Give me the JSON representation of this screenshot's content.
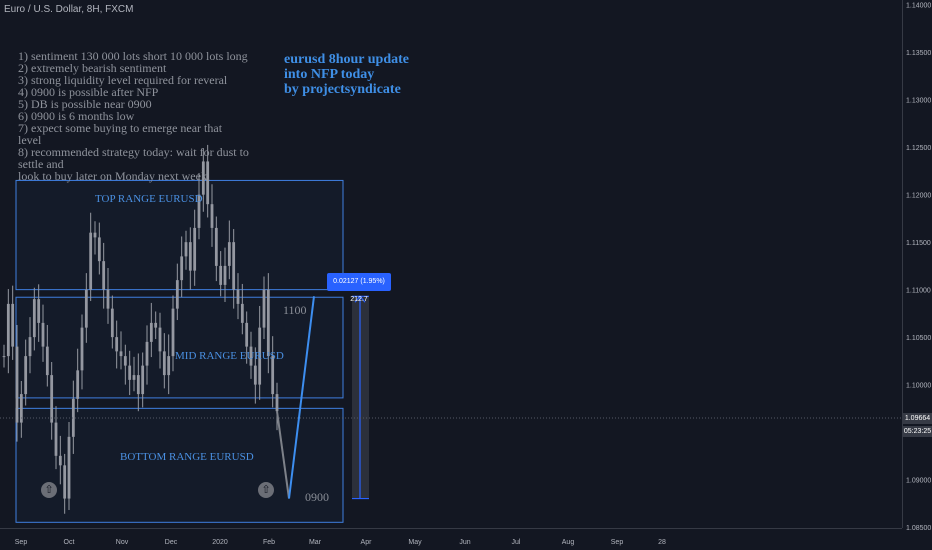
{
  "header": {
    "symbol": "Euro / U.S. Dollar, 8H, FXCM"
  },
  "notes": [
    "1) sentiment 130 000 lots short 10 000 lots long",
    "2) extremely bearish sentiment",
    "3) strong liquidity level required for reveral",
    "4) 0900 is possible after NFP",
    "5) DB is possible near 0900",
    "6) 0900 is 6 months low",
    "7) expect some buying to emerge near that\nlevel",
    "8) recommended strategy today: wait for dust to settle and\nlook to buy later on Monday next week."
  ],
  "headline": [
    "eurusd 8hour update",
    "into NFP today",
    "by projectsyndicate"
  ],
  "ranges": {
    "top": "TOP RANGE EURUSD",
    "mid": "MID RANGE EURUSD",
    "bottom": "BOTTOM RANGE EURUSD"
  },
  "levels": {
    "upper": "1100",
    "lower": "0900"
  },
  "measure": {
    "label": "0.02127 (1.95%) 212.7"
  },
  "price_scale": {
    "current_price": "1.09664",
    "countdown": "05:23:25"
  },
  "chart_data": {
    "type": "candlestick",
    "title": "Euro / U.S. Dollar, 8H, FXCM",
    "x_ticks": [
      "Sep",
      "Oct",
      "Nov",
      "Dec",
      "2020",
      "Feb",
      "Mar",
      "Apr",
      "May",
      "Jun",
      "Jul",
      "Aug",
      "Sep",
      "28"
    ],
    "y_ticks": [
      "1.14000",
      "1.13500",
      "1.13000",
      "1.12500",
      "1.12000",
      "1.11500",
      "1.11000",
      "1.10500",
      "1.10000",
      "1.09500",
      "1.09000",
      "1.08500"
    ],
    "ylim": [
      1.0849,
      1.1405
    ],
    "grid": false,
    "series": [
      {
        "values": [
          1.103,
          1.1085,
          1.104,
          1.096,
          1.099,
          1.103,
          1.105,
          1.109,
          1.1065,
          1.104,
          1.101,
          1.096,
          1.0925,
          1.0915,
          1.088,
          1.0945,
          1.0985,
          1.1015,
          1.106,
          1.11,
          1.116,
          1.1155,
          1.113,
          1.11,
          1.108,
          1.105,
          1.1035,
          1.103,
          1.102,
          1.1005,
          1.101,
          1.099,
          1.102,
          1.1045,
          1.1065,
          1.106,
          1.1035,
          1.101,
          1.103,
          1.108,
          1.111,
          1.1135,
          1.115,
          1.112,
          1.1165,
          1.12,
          1.1235,
          1.119,
          1.1165,
          1.1125,
          1.1105,
          1.1125,
          1.115,
          1.11,
          1.1085,
          1.1065,
          1.104,
          1.102,
          1.1,
          1.106,
          1.11,
          1.103,
          1.099,
          1.0972
        ]
      }
    ],
    "annotations": {
      "ranges": [
        {
          "label": "TOP RANGE EURUSD",
          "from": 1.11,
          "to": 1.1215,
          "color": "#3f7fe0"
        },
        {
          "label": "MID RANGE EURUSD",
          "from": 1.0986,
          "to": 1.1092,
          "color": "#3f7fe0"
        },
        {
          "label": "BOTTOM RANGE EURUSD",
          "from": 1.0855,
          "to": 1.0975,
          "color": "#3f7fe0"
        }
      ],
      "projection": [
        1.0972,
        1.088,
        1.1093
      ],
      "measure": {
        "from": 1.088,
        "to": 1.1093
      }
    }
  },
  "colors": {
    "background": "#131722",
    "candles": "#9598a1",
    "range_box": "#3f7fe0",
    "projection": "#3d8ef0",
    "measure_tag": "#2962ff"
  }
}
